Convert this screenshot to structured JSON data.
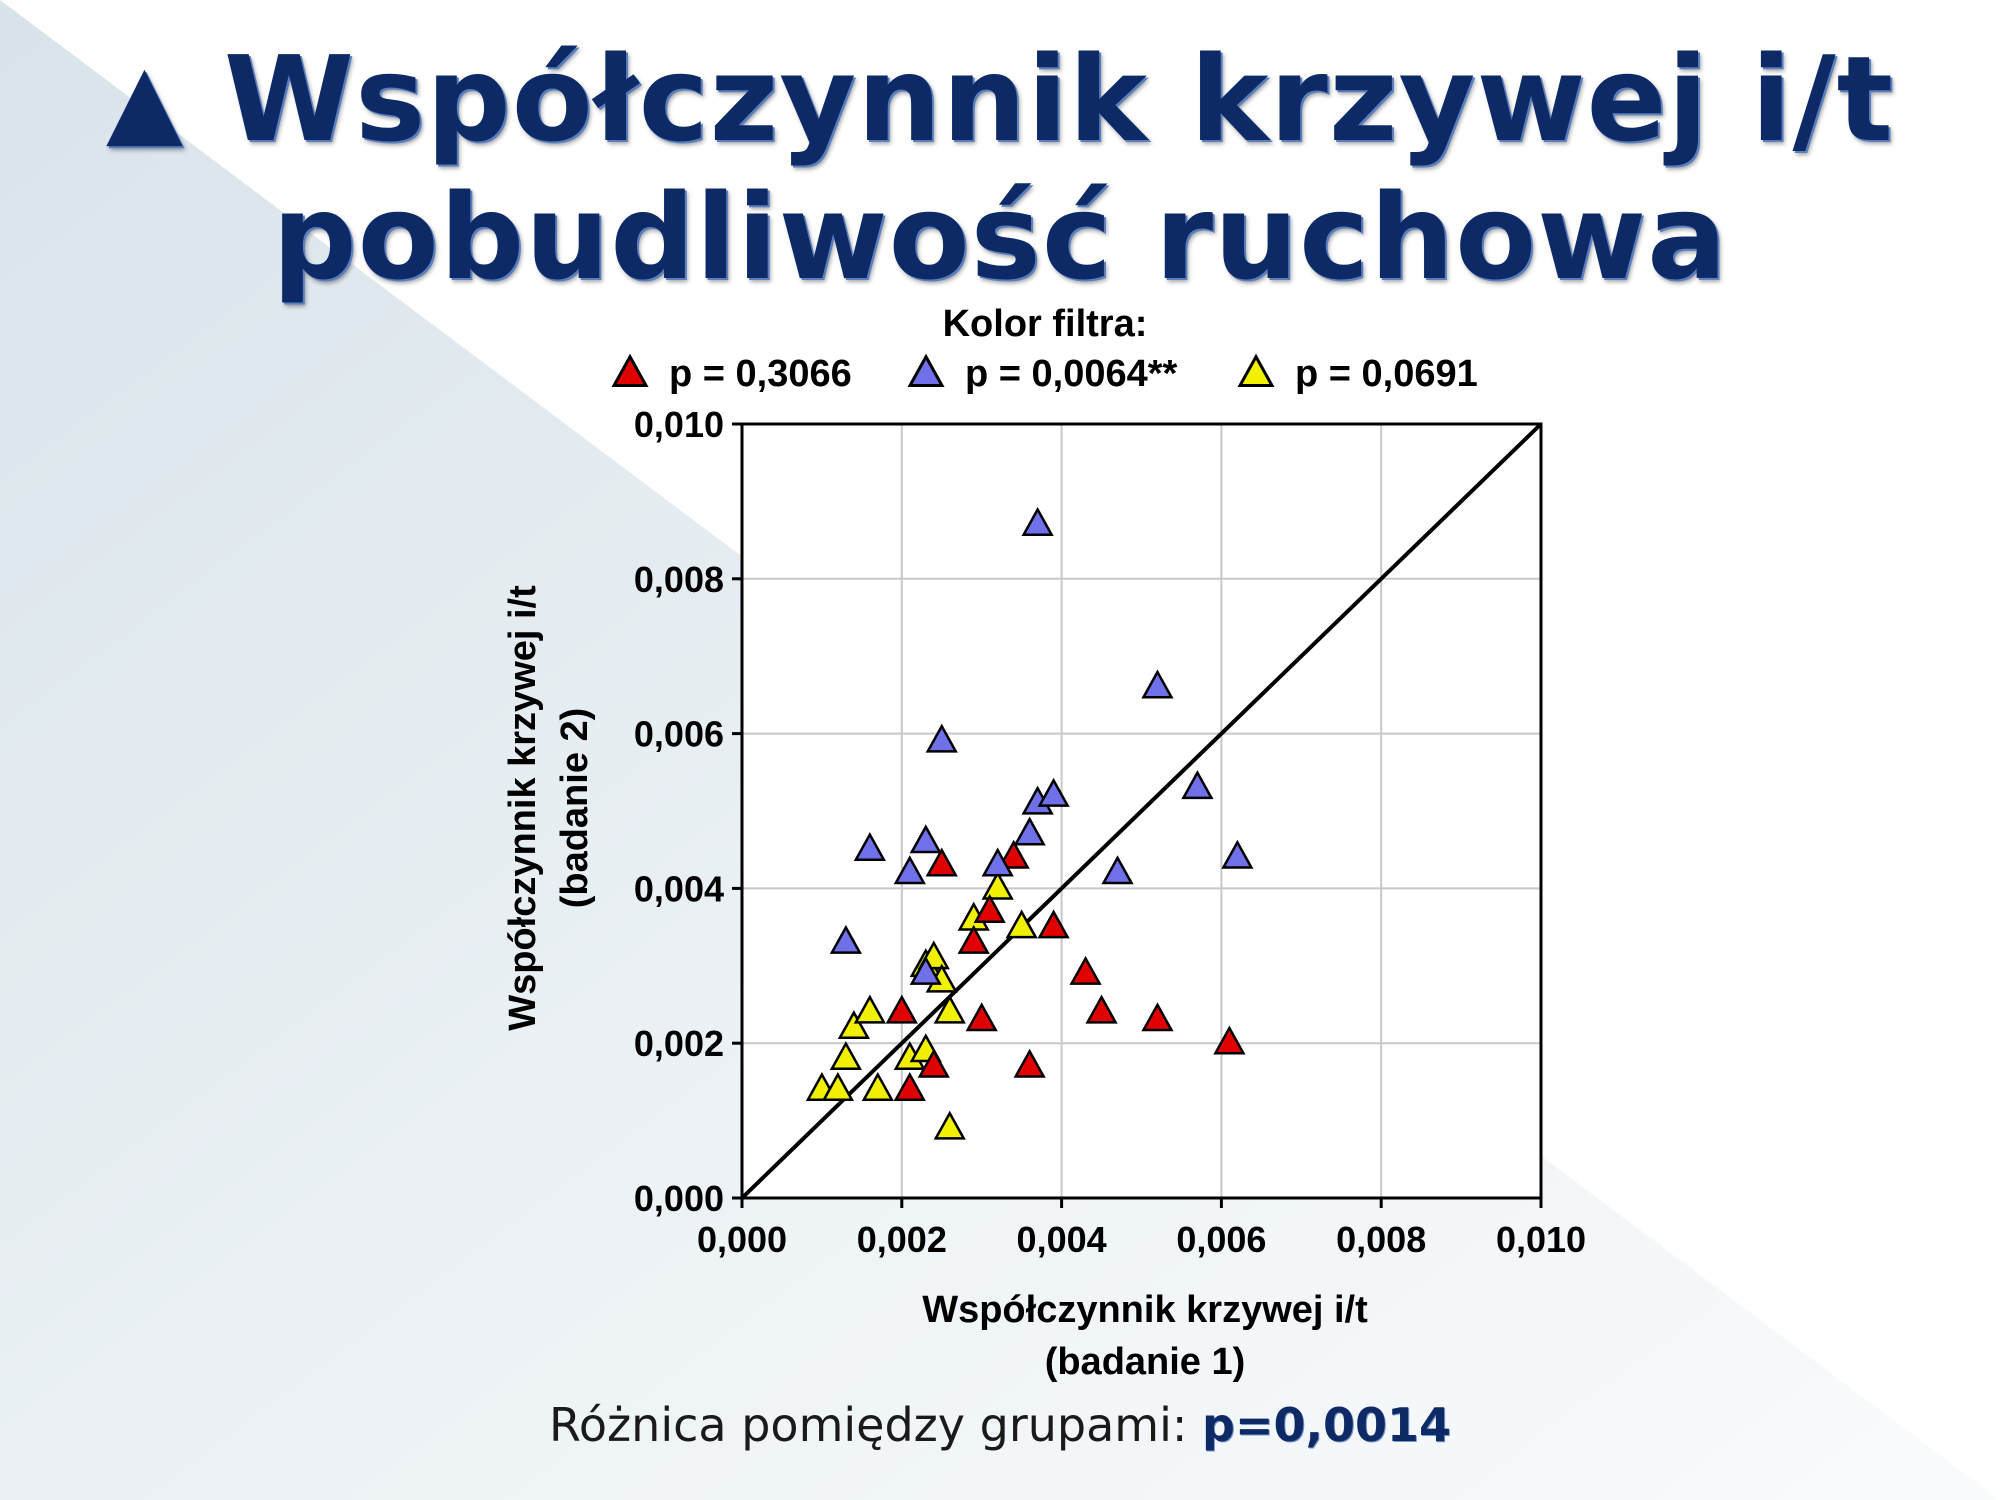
{
  "slide": {
    "title_bullet": "▲",
    "title_line1": "Współczynnik krzywej i/t",
    "title_line2": "pobudliwość ruchowa",
    "footer_label": "Różnica pomiędzy grupami: ",
    "footer_value": "p=0,0014"
  },
  "colors": {
    "title": "#0d2a66",
    "red": "#e00000",
    "blue": "#7070e8",
    "yellow": "#f0f000",
    "background_gradient": "#dfe8ee"
  },
  "chart_data": {
    "type": "scatter",
    "legend_title": "Kolor filtra:",
    "legend_position": "top",
    "xlabel_line1": "Współczynnik krzywej i/t",
    "xlabel_line2": "(badanie 1)",
    "ylabel_line1": "Współczynnik krzywej i/t",
    "ylabel_line2": "(badanie 2)",
    "xlim": [
      0,
      0.01
    ],
    "ylim": [
      0,
      0.01
    ],
    "xticks": [
      "0,000",
      "0,002",
      "0,004",
      "0,006",
      "0,008",
      "0,010"
    ],
    "yticks": [
      "0,000",
      "0,002",
      "0,004",
      "0,006",
      "0,008",
      "0,010"
    ],
    "grid": true,
    "reference_line": {
      "x": [
        0,
        0.01
      ],
      "y": [
        0,
        0.01
      ]
    },
    "series": [
      {
        "name": "p = 0,3066",
        "color": "#e00000",
        "marker": "triangle",
        "x": [
          0.002,
          0.0021,
          0.0024,
          0.0025,
          0.0029,
          0.003,
          0.0031,
          0.0034,
          0.0036,
          0.0039,
          0.0043,
          0.0045,
          0.0052,
          0.0061
        ],
        "y": [
          0.0024,
          0.0014,
          0.0017,
          0.0043,
          0.0033,
          0.0023,
          0.0037,
          0.0044,
          0.0017,
          0.0035,
          0.0029,
          0.0024,
          0.0023,
          0.002
        ]
      },
      {
        "name": "p = 0,0064**",
        "color": "#7070e8",
        "marker": "triangle",
        "x": [
          0.0013,
          0.0016,
          0.0021,
          0.0023,
          0.0023,
          0.0025,
          0.0032,
          0.0036,
          0.0037,
          0.0037,
          0.0039,
          0.0047,
          0.0052,
          0.0057,
          0.0062
        ],
        "y": [
          0.0033,
          0.0045,
          0.0042,
          0.0046,
          0.0029,
          0.0059,
          0.0043,
          0.0047,
          0.0051,
          0.0087,
          0.0052,
          0.0042,
          0.0066,
          0.0053,
          0.0044
        ]
      },
      {
        "name": "p = 0,0691",
        "color": "#f0f000",
        "marker": "triangle",
        "x": [
          0.001,
          0.0012,
          0.0013,
          0.0014,
          0.0016,
          0.0017,
          0.0021,
          0.0023,
          0.0023,
          0.0024,
          0.0025,
          0.0026,
          0.0026,
          0.0029,
          0.0032,
          0.0035
        ],
        "y": [
          0.0014,
          0.0014,
          0.0018,
          0.0022,
          0.0024,
          0.0014,
          0.0018,
          0.003,
          0.0019,
          0.0031,
          0.0028,
          0.0009,
          0.0024,
          0.0036,
          0.004,
          0.0035
        ]
      }
    ]
  }
}
